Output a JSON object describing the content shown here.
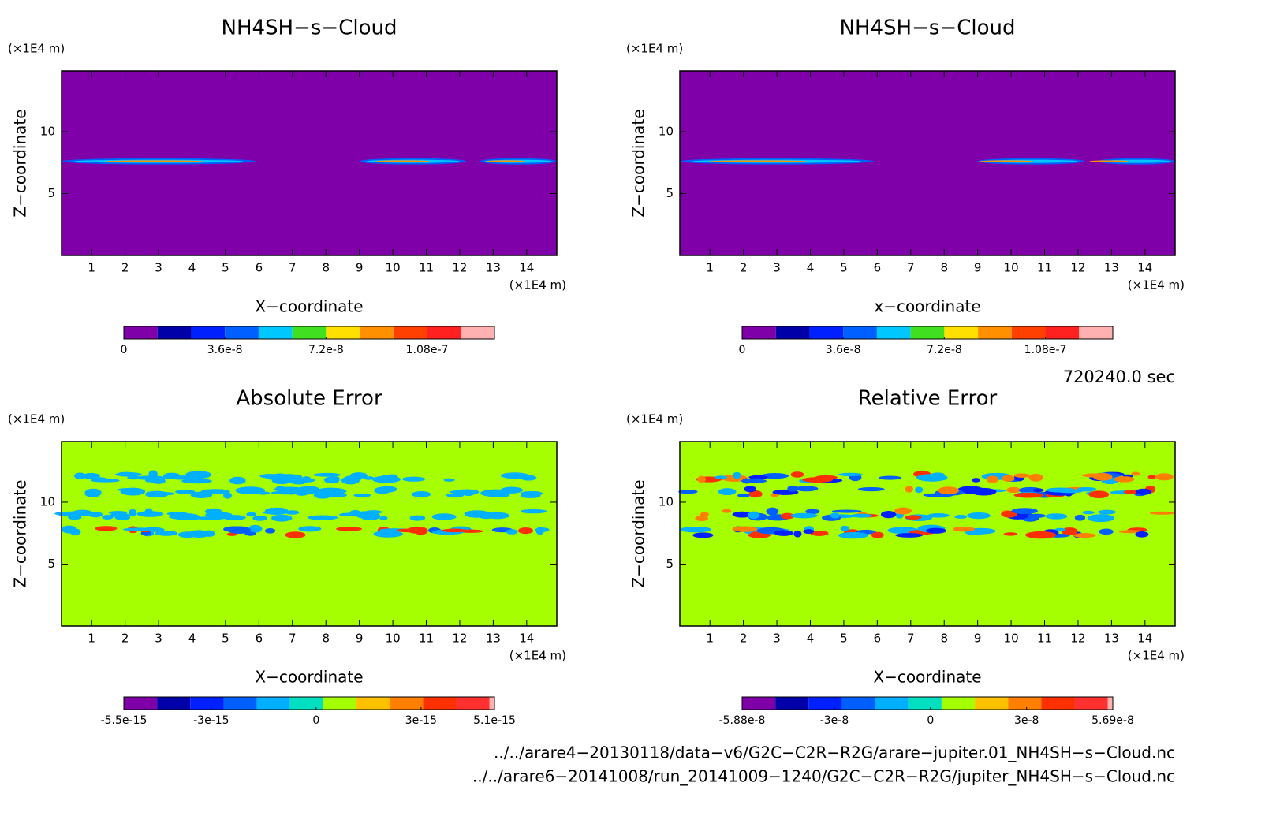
{
  "chart_data": [
    {
      "type": "contour",
      "title": "NH4SH−s−Cloud",
      "xlabel": "X−coordinate",
      "ylabel": "Z−coordinate",
      "xunit": "(×1E4 m)",
      "yunit": "(×1E4 m)",
      "xlim": [
        0.1,
        14.9
      ],
      "ylim": [
        0,
        14.9
      ],
      "xticks": [
        1,
        2,
        3,
        4,
        5,
        6,
        7,
        8,
        9,
        10,
        11,
        12,
        13,
        14
      ],
      "yticks": [
        5,
        10
      ],
      "field_color": "#7f00a8",
      "colorbar": {
        "colors": [
          "#7f00a8",
          "#0000a8",
          "#0020ff",
          "#0060ff",
          "#00c8ff",
          "#40e020",
          "#ffe000",
          "#ff9000",
          "#ff4000",
          "#ff2020",
          "#ffb0b0"
        ],
        "lim": [
          0,
          1.32e-07
        ],
        "ticks": [
          0,
          3.6e-08,
          7.2e-08,
          1.08e-07
        ]
      }
    },
    {
      "type": "contour",
      "title": "NH4SH−s−Cloud",
      "xlabel": "x−coordinate",
      "ylabel": "Z−coordinate",
      "xunit": "(×1E4 m)",
      "yunit": "(×1E4 m)",
      "xlim": [
        0.1,
        14.9
      ],
      "ylim": [
        0,
        14.9
      ],
      "xticks": [
        1,
        2,
        3,
        4,
        5,
        6,
        7,
        8,
        9,
        10,
        11,
        12,
        13,
        14
      ],
      "yticks": [
        5,
        10
      ],
      "field_color": "#7f00a8",
      "colorbar": {
        "colors": [
          "#7f00a8",
          "#0000a8",
          "#0020ff",
          "#0060ff",
          "#00c8ff",
          "#40e020",
          "#ffe000",
          "#ff9000",
          "#ff4000",
          "#ff2020",
          "#ffb0b0"
        ],
        "lim": [
          0,
          1.32e-07
        ],
        "ticks": [
          0,
          3.6e-08,
          7.2e-08,
          1.08e-07
        ]
      }
    },
    {
      "type": "contour",
      "title": "Absolute Error",
      "xlabel": "X−coordinate",
      "ylabel": "Z−coordinate",
      "xunit": "(×1E4 m)",
      "yunit": "(×1E4 m)",
      "xlim": [
        0.1,
        14.9
      ],
      "ylim": [
        0,
        14.9
      ],
      "xticks": [
        1,
        2,
        3,
        4,
        5,
        6,
        7,
        8,
        9,
        10,
        11,
        12,
        13,
        14
      ],
      "yticks": [
        5,
        10
      ],
      "field_color": "#a5ff00",
      "colorbar": {
        "colors": [
          "#7f00a8",
          "#0000a8",
          "#0020ff",
          "#0060ff",
          "#00b0ff",
          "#00e0c0",
          "#a5ff00",
          "#ffc000",
          "#ff8000",
          "#ff3000",
          "#ff3030",
          "#ffb0b0"
        ],
        "lim": [
          -5.5e-15,
          5.1e-15
        ],
        "ticks": [
          -5.5e-15,
          -3e-15,
          0,
          3e-15,
          5.1e-15
        ]
      }
    },
    {
      "type": "contour",
      "title": "Relative Error",
      "xlabel": "X−coordinate",
      "ylabel": "Z−coordinate",
      "xunit": "(×1E4 m)",
      "yunit": "(×1E4 m)",
      "xlim": [
        0.1,
        14.9
      ],
      "ylim": [
        0,
        14.9
      ],
      "xticks": [
        1,
        2,
        3,
        4,
        5,
        6,
        7,
        8,
        9,
        10,
        11,
        12,
        13,
        14
      ],
      "yticks": [
        5,
        10
      ],
      "field_color": "#a5ff00",
      "colorbar": {
        "colors": [
          "#7f00a8",
          "#0000a8",
          "#0020ff",
          "#0060ff",
          "#00b0ff",
          "#00e0c0",
          "#a5ff00",
          "#ffc000",
          "#ff8000",
          "#ff3000",
          "#ff3030",
          "#ffb0b0"
        ],
        "lim": [
          -5.88e-08,
          5.69e-08
        ],
        "ticks": [
          -5.88e-08,
          -3e-08,
          0,
          3e-08,
          5.69e-08
        ]
      }
    }
  ],
  "time": "720240.0 sec",
  "files": [
    "../../arare4−20130118/data−v6/G2C−C2R−R2G/arare−jupiter.01_NH4SH−s−Cloud.nc",
    "../../arare6−20141008/run_20141009−1240/G2C−C2R−R2G/jupiter_NH4SH−s−Cloud.nc"
  ]
}
